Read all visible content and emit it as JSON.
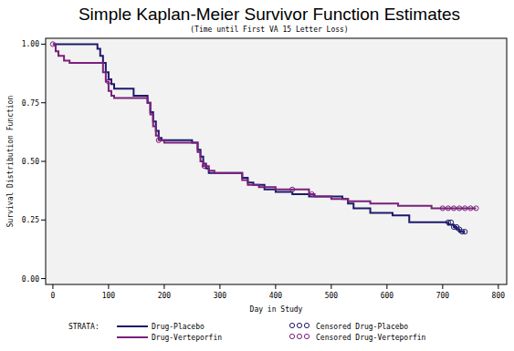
{
  "chart_data": {
    "type": "step",
    "title": "Simple Kaplan-Meier Survivor Function Estimates",
    "subtitle": "(Time until First VA 15 Letter Loss)",
    "x_label": "Day in Study",
    "y_label": "Survival Distribution Function",
    "legend_title": "STRATA:",
    "legend": "bottom",
    "grid": false,
    "xlim": [
      -13,
      815
    ],
    "ylim": [
      -0.025,
      1.025
    ],
    "xticks": [
      0,
      100,
      200,
      300,
      400,
      500,
      600,
      700,
      800
    ],
    "yticks": [
      {
        "value": 0,
        "label": "0.00"
      },
      {
        "value": 0.25,
        "label": "0.25"
      },
      {
        "value": 0.5,
        "label": "0.50"
      },
      {
        "value": 0.75,
        "label": "0.75"
      },
      {
        "value": 1,
        "label": "1.00"
      }
    ],
    "series": [
      {
        "name": "Drug-Placebo",
        "type": "step",
        "color": "#1c1a6b",
        "line_style": "solid",
        "x": [
          0,
          80,
          85,
          90,
          95,
          100,
          105,
          110,
          145,
          170,
          175,
          180,
          185,
          190,
          195,
          250,
          260,
          265,
          270,
          275,
          280,
          340,
          350,
          360,
          380,
          400,
          430,
          460,
          520,
          530,
          540,
          570,
          610,
          640,
          710,
          720,
          725,
          730,
          740
        ],
        "values": [
          1.0,
          0.98,
          0.95,
          0.92,
          0.88,
          0.85,
          0.83,
          0.81,
          0.78,
          0.75,
          0.71,
          0.67,
          0.63,
          0.6,
          0.59,
          0.58,
          0.55,
          0.52,
          0.49,
          0.47,
          0.45,
          0.43,
          0.41,
          0.4,
          0.38,
          0.37,
          0.36,
          0.35,
          0.34,
          0.32,
          0.3,
          0.28,
          0.27,
          0.24,
          0.23,
          0.22,
          0.21,
          0.2,
          0.2
        ]
      },
      {
        "name": "Drug-Verteporfin",
        "type": "step",
        "color": "#7a1f7c",
        "line_style": "solid",
        "x": [
          0,
          5,
          10,
          20,
          30,
          90,
          95,
          100,
          105,
          110,
          170,
          175,
          180,
          185,
          190,
          200,
          260,
          265,
          270,
          280,
          290,
          340,
          350,
          370,
          400,
          460,
          470,
          500,
          530,
          570,
          620,
          680,
          760
        ],
        "values": [
          1.0,
          0.97,
          0.95,
          0.93,
          0.92,
          0.88,
          0.84,
          0.8,
          0.78,
          0.77,
          0.75,
          0.7,
          0.65,
          0.61,
          0.59,
          0.58,
          0.54,
          0.5,
          0.48,
          0.46,
          0.45,
          0.42,
          0.4,
          0.39,
          0.38,
          0.36,
          0.35,
          0.34,
          0.33,
          0.32,
          0.31,
          0.3,
          0.3
        ]
      },
      {
        "name": "Censored Drug-Placebo",
        "type": "scatter",
        "color": "#1c1a6b",
        "marker": "circle",
        "x": [
          710,
          715,
          720,
          725,
          730,
          735,
          740
        ],
        "values": [
          0.24,
          0.24,
          0.22,
          0.22,
          0.21,
          0.2,
          0.2
        ]
      },
      {
        "name": "Censored Drug-Verteporfin",
        "type": "scatter",
        "color": "#7a1f7c",
        "marker": "circle",
        "x": [
          0,
          100,
          190,
          272,
          430,
          465,
          700,
          710,
          720,
          730,
          740,
          750,
          760
        ],
        "values": [
          1.0,
          0.84,
          0.59,
          0.48,
          0.38,
          0.36,
          0.3,
          0.3,
          0.3,
          0.3,
          0.3,
          0.3,
          0.3
        ]
      }
    ]
  }
}
